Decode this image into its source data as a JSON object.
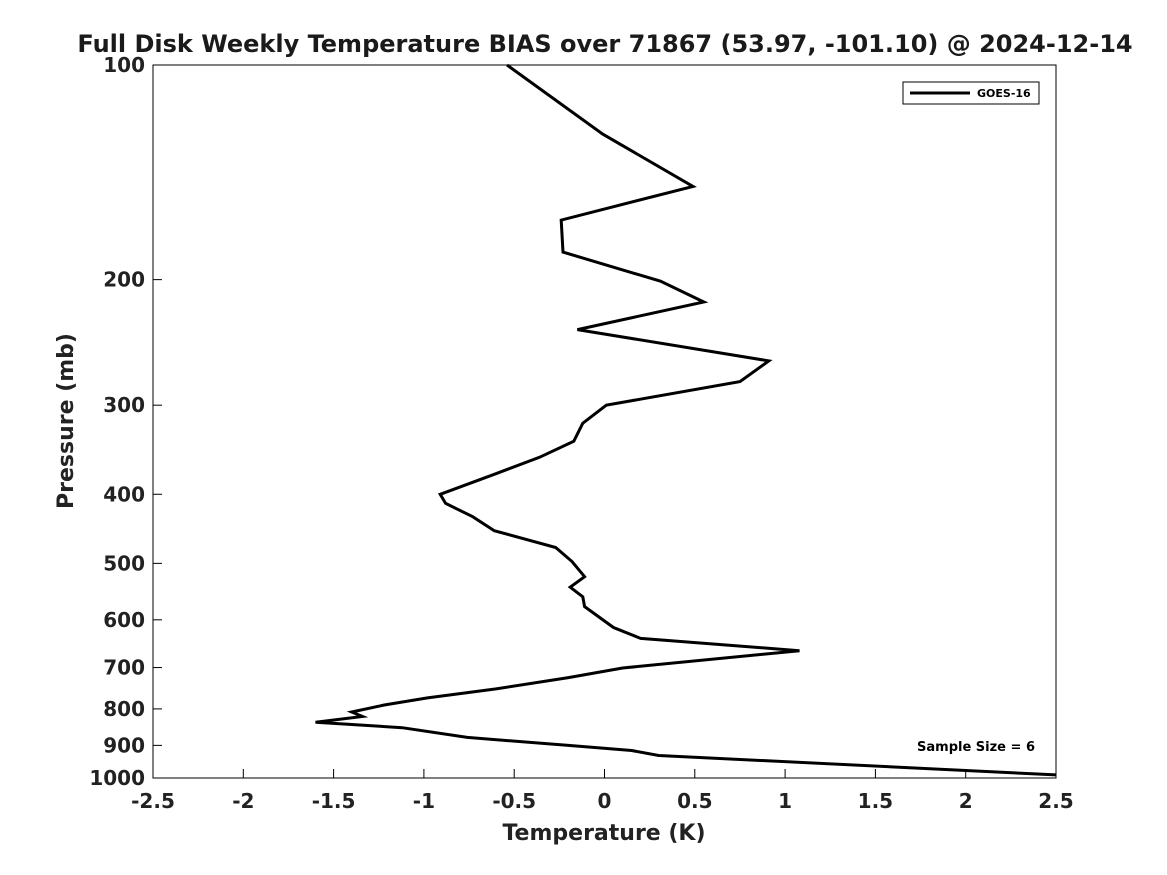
{
  "chart_data": {
    "type": "line",
    "title": "Full Disk Weekly Temperature BIAS over 71867 (53.97, -101.10) @ 2024-12-14",
    "xlabel": "Temperature (K)",
    "ylabel": "Pressure (mb)",
    "xlim": [
      -2.5,
      2.5
    ],
    "ylim": [
      100,
      1000
    ],
    "yscale": "log",
    "yreversed": true,
    "grid": false,
    "x_ticks": [
      -2.5,
      -2,
      -1.5,
      -1,
      -0.5,
      0,
      0.5,
      1,
      1.5,
      2,
      2.5
    ],
    "x_tick_labels": [
      "-2.5",
      "-2",
      "-1.5",
      "-1",
      "-0.5",
      "0",
      "0.5",
      "1",
      "1.5",
      "2",
      "2.5"
    ],
    "y_ticks": [
      100,
      200,
      300,
      400,
      500,
      600,
      700,
      800,
      900,
      1000
    ],
    "y_tick_labels": [
      "100",
      "200",
      "300",
      "400",
      "500",
      "600",
      "700",
      "800",
      "900",
      "1000"
    ],
    "legend": {
      "position": "top-right",
      "entries": [
        "GOES-16"
      ]
    },
    "annotation": "Sample Size = 6",
    "colors": {
      "line": "#000000"
    },
    "series": [
      {
        "name": "GOES-16",
        "points": [
          {
            "x": -0.54,
            "p": 100
          },
          {
            "x": -0.01,
            "p": 125
          },
          {
            "x": 0.49,
            "p": 148
          },
          {
            "x": -0.24,
            "p": 165
          },
          {
            "x": -0.23,
            "p": 183
          },
          {
            "x": 0.31,
            "p": 201
          },
          {
            "x": 0.55,
            "p": 215
          },
          {
            "x": -0.15,
            "p": 235
          },
          {
            "x": 0.91,
            "p": 260
          },
          {
            "x": 0.75,
            "p": 278
          },
          {
            "x": 0.01,
            "p": 300
          },
          {
            "x": -0.12,
            "p": 318
          },
          {
            "x": -0.17,
            "p": 337
          },
          {
            "x": -0.36,
            "p": 355
          },
          {
            "x": -0.61,
            "p": 375
          },
          {
            "x": -0.91,
            "p": 400
          },
          {
            "x": -0.88,
            "p": 412
          },
          {
            "x": -0.73,
            "p": 430
          },
          {
            "x": -0.61,
            "p": 450
          },
          {
            "x": -0.27,
            "p": 475
          },
          {
            "x": -0.18,
            "p": 497
          },
          {
            "x": -0.11,
            "p": 522
          },
          {
            "x": -0.19,
            "p": 540
          },
          {
            "x": -0.12,
            "p": 557
          },
          {
            "x": -0.11,
            "p": 575
          },
          {
            "x": 0.05,
            "p": 615
          },
          {
            "x": 0.2,
            "p": 637
          },
          {
            "x": 1.08,
            "p": 663
          },
          {
            "x": 0.1,
            "p": 701
          },
          {
            "x": -0.2,
            "p": 723
          },
          {
            "x": -0.6,
            "p": 750
          },
          {
            "x": -0.98,
            "p": 772
          },
          {
            "x": -1.22,
            "p": 790
          },
          {
            "x": -1.4,
            "p": 808
          },
          {
            "x": -1.34,
            "p": 820
          },
          {
            "x": -1.6,
            "p": 835
          },
          {
            "x": -1.12,
            "p": 850
          },
          {
            "x": -0.76,
            "p": 877
          },
          {
            "x": -0.2,
            "p": 900
          },
          {
            "x": 0.15,
            "p": 915
          },
          {
            "x": 0.3,
            "p": 930
          },
          {
            "x": 2.5,
            "p": 990
          }
        ]
      }
    ]
  }
}
